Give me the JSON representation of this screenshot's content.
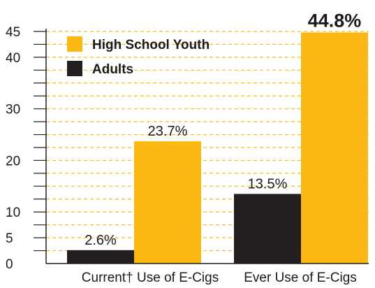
{
  "chart_data": {
    "type": "bar",
    "categories": [
      "Current† Use of E-Cigs",
      "Ever Use of E-Cigs"
    ],
    "series": [
      {
        "name": "Adults",
        "values": [
          2.6,
          13.5
        ],
        "labels": [
          "2.6%",
          "13.5%"
        ],
        "color": "#231f20"
      },
      {
        "name": "High School Youth",
        "values": [
          23.7,
          44.8
        ],
        "labels": [
          "23.7%",
          "44.8%"
        ],
        "color": "#fdb913"
      }
    ],
    "legend_order": [
      "High School Youth",
      "Adults"
    ],
    "legend_position": "top-left",
    "y_ticks": [
      0,
      5,
      10,
      20,
      30,
      40,
      45
    ],
    "ylim": [
      0,
      45
    ],
    "minor_tick_step": 2.5,
    "grid": "dashed",
    "grid_color": "#fdb913",
    "axis_color": "#231f20",
    "title": "",
    "xlabel": "",
    "ylabel": ""
  }
}
